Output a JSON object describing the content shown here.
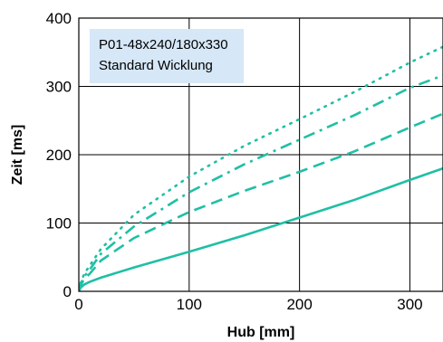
{
  "chart_data": {
    "type": "line",
    "title": "",
    "xlabel": "Hub [mm]",
    "ylabel": "Zeit [ms]",
    "xlim": [
      0,
      330
    ],
    "ylim": [
      0,
      400
    ],
    "xticks": [
      0,
      100,
      200,
      300
    ],
    "yticks": [
      0,
      100,
      200,
      300,
      400
    ],
    "grid": true,
    "annotation": {
      "lines": [
        "P01-48x240/180x330",
        "Standard Wicklung"
      ],
      "background": "#d6e7f7",
      "placement": "top-left"
    },
    "line_color": "#1fbfa5",
    "series": [
      {
        "style": "solid",
        "x": [
          0,
          2,
          5,
          10,
          20,
          50,
          100,
          150,
          200,
          250,
          300,
          330
        ],
        "y": [
          0,
          6,
          10,
          14,
          20,
          35,
          58,
          82,
          108,
          134,
          163,
          180
        ]
      },
      {
        "style": "dashed",
        "x": [
          0,
          2,
          5,
          10,
          20,
          50,
          100,
          150,
          200,
          250,
          300,
          330
        ],
        "y": [
          0,
          10,
          18,
          26,
          45,
          78,
          116,
          147,
          175,
          205,
          240,
          260
        ]
      },
      {
        "style": "dashdot",
        "x": [
          0,
          2,
          5,
          10,
          20,
          50,
          100,
          150,
          200,
          250,
          300,
          330
        ],
        "y": [
          0,
          12,
          22,
          32,
          55,
          95,
          145,
          186,
          222,
          258,
          298,
          316
        ]
      },
      {
        "style": "dotted",
        "x": [
          0,
          2,
          5,
          10,
          20,
          50,
          100,
          150,
          200,
          250,
          300,
          330
        ],
        "y": [
          0,
          14,
          26,
          38,
          62,
          112,
          168,
          213,
          252,
          292,
          335,
          358
        ]
      }
    ]
  }
}
